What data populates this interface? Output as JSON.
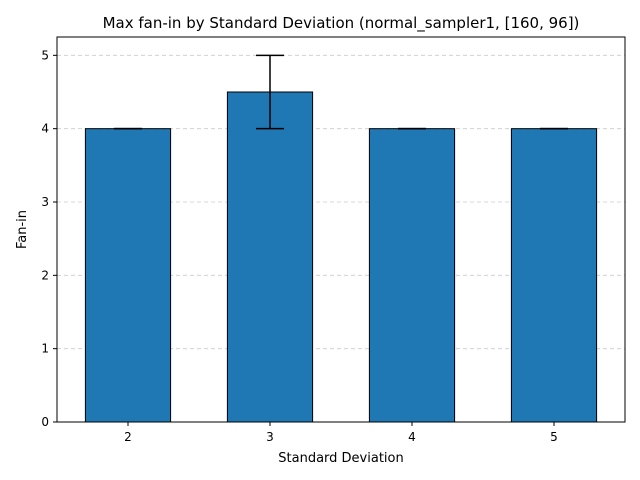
{
  "chart_data": {
    "type": "bar",
    "title": "Max fan-in by Standard Deviation (normal_sampler1, [160, 96])",
    "xlabel": "Standard Deviation",
    "ylabel": "Fan-in",
    "categories": [
      "2",
      "3",
      "4",
      "5"
    ],
    "values": [
      4,
      4.5,
      4,
      4
    ],
    "error_bars": [
      [
        4,
        4
      ],
      [
        4,
        5
      ],
      [
        4,
        4
      ],
      [
        4,
        4
      ]
    ],
    "ylim": [
      0,
      5.25
    ],
    "yticks": [
      "0",
      "1",
      "2",
      "3",
      "4",
      "5"
    ],
    "grid": "horizontal dashed",
    "colors": {
      "bar": "#1f77b4",
      "edge": "#000000",
      "grid": "#cccccc",
      "errorbar": "#000000"
    }
  }
}
